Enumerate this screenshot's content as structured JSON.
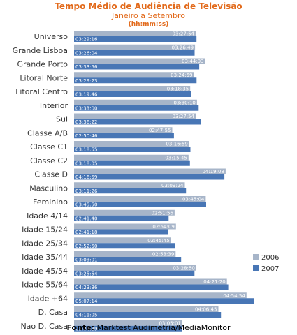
{
  "chart_data": {
    "type": "bar",
    "orientation": "horizontal",
    "title": "Tempo Médio de Audiência  de Televisão",
    "subtitle": "Janeiro a Setembro",
    "unit_label": "(hh:mm:ss)",
    "source_label": "Fonte:",
    "source_text": "Marktest Audimetria/MediaMonitor",
    "legend_placement": "right",
    "categories": [
      "Universo",
      "Grande Lisboa",
      "Grande Porto",
      "Litoral Norte",
      "Litoral Centro",
      "Interior",
      "Sul",
      "Classe A/B",
      "Classe C1",
      "Classe C2",
      "Classe D",
      "Masculino",
      "Feminino",
      "Idade 4/14",
      "Idade 15/24",
      "Idade 25/34",
      "Idade 35/44",
      "Idade 45/54",
      "Idade 55/64",
      "Idade +64",
      "D. Casa",
      "Nao D. Casa"
    ],
    "series": [
      {
        "name": "2006",
        "color": "#a7b5c9",
        "values": [
          "03:27:54",
          "03:26:49",
          "03:44:03",
          "03:24:59",
          "03:18:35",
          "03:30:10",
          "03:27:54",
          "02:47:55",
          "03:16:59",
          "03:15:45",
          "04:19:08",
          "03:09:24",
          "03:45:04",
          "02:51:56",
          "02:54:09",
          "02:45:45",
          "02:53:39",
          "03:28:50",
          "04:21:20",
          "04:54:54",
          "04:06:45",
          "03:05:01"
        ]
      },
      {
        "name": "2007",
        "color": "#4876b5",
        "values": [
          "03:29:16",
          "03:26:04",
          "03:33:56",
          "03:29:23",
          "03:19:46",
          "03:33:00",
          "03:36:22",
          "02:50:46",
          "03:18:55",
          "03:18:05",
          "04:16:59",
          "03:11:26",
          "03:45:50",
          "02:41:40",
          "02:41:18",
          "02:52:50",
          "03:03:01",
          "03:25:54",
          "04:23:36",
          "05:07:14",
          "04:11:05",
          "03:04:39"
        ]
      }
    ]
  }
}
